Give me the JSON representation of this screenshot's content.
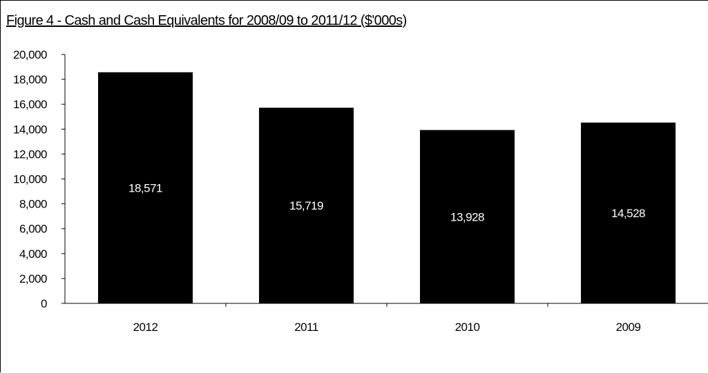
{
  "chart_data": {
    "type": "bar",
    "title": "Figure 4 - Cash and Cash Equivalents for 2008/09 to 2011/12 ($'000s)",
    "xlabel": "",
    "ylabel": "",
    "categories": [
      "2012",
      "2011",
      "2010",
      "2009"
    ],
    "values": [
      18571,
      15719,
      13928,
      14528
    ],
    "data_labels": [
      "18,571",
      "15,719",
      "13,928",
      "14,528"
    ],
    "ylim": [
      0,
      20000
    ],
    "y_ticks": [
      0,
      2000,
      4000,
      6000,
      8000,
      10000,
      12000,
      14000,
      16000,
      18000,
      20000
    ],
    "y_tick_labels": [
      "0",
      "2,000",
      "4,000",
      "6,000",
      "8,000",
      "10,000",
      "12,000",
      "14,000",
      "16,000",
      "18,000",
      "20,000"
    ],
    "bar_color": "#000000",
    "grid": false,
    "legend": "none"
  }
}
